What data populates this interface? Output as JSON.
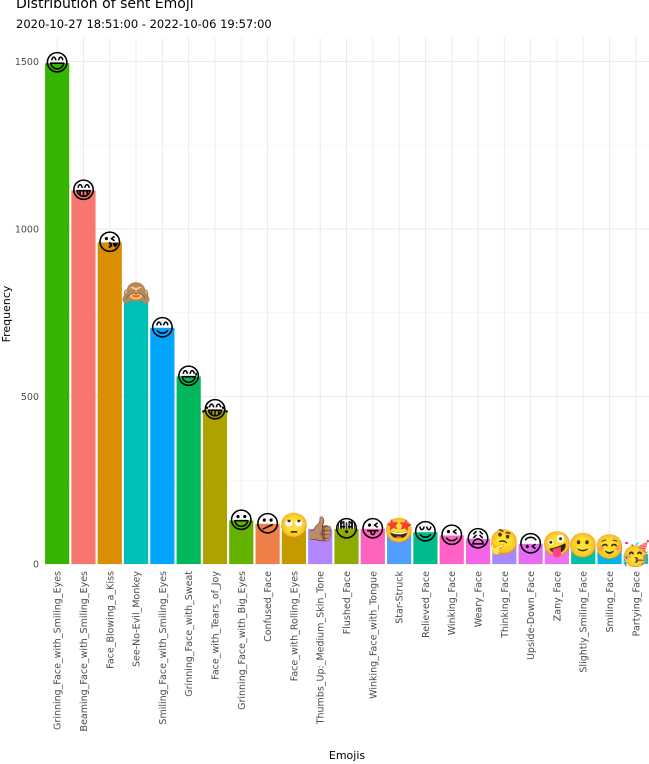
{
  "title": "Distribution of sent Emoji",
  "subtitle": "2020-10-27 18:51:00  -  2022-10-06 19:57:00",
  "chart_data": {
    "type": "bar",
    "xlabel": "Emojis",
    "ylabel": "Frequency",
    "ylim": [
      0,
      1570
    ],
    "yticks": [
      0,
      500,
      1000,
      1500
    ],
    "grid": true,
    "categories": [
      "Grinning_Face_with_Smiling_Eyes",
      "Beaming_Face_with_Smiling_Eyes",
      "Face_Blowing_a_Kiss",
      "See-No-Evil_Monkey",
      "Smiling_Face_with_Smiling_Eyes",
      "Grinning_Face_with_Sweat",
      "Face_with_Tears_of_Joy",
      "Grinning_Face_with_Big_Eyes",
      "Confused_Face",
      "Face_with_Rolling_Eyes",
      "Thumbs_Up:_Medium_Skin_Tone",
      "Flushed_Face",
      "Winking_Face_with_Tongue",
      "Star-Struck",
      "Relieved_Face",
      "Winking_Face",
      "Weary_Face",
      "Thinking_Face",
      "Upside-Down_Face",
      "Zany_Face",
      "Slightly_Smiling_Face",
      "Smiling_Face",
      "Partying_Face"
    ],
    "values": [
      1495,
      1115,
      960,
      810,
      705,
      560,
      460,
      130,
      120,
      115,
      105,
      105,
      105,
      100,
      95,
      85,
      75,
      65,
      60,
      60,
      55,
      50,
      30
    ],
    "colors": [
      "#36B400",
      "#F8766D",
      "#DB8E00",
      "#00BFB4",
      "#00A5FF",
      "#00B85B",
      "#AEA200",
      "#64B200",
      "#EF7F49",
      "#C49A00",
      "#B385FF",
      "#8FAA00",
      "#FF62BC",
      "#529EFF",
      "#00BC8C",
      "#FF61C9",
      "#F564E3",
      "#A58AFF",
      "#E76BF3",
      "#EA71F3",
      "#00C1A8",
      "#00B4EF",
      "#00BCD8"
    ],
    "emojis": [
      "😄",
      "😁",
      "😘",
      "🙈",
      "😊",
      "😅",
      "😂",
      "😃",
      "😕",
      "🙄",
      "👍🏽",
      "😳",
      "😜",
      "🤩",
      "😌",
      "😉",
      "😩",
      "🤔",
      "🙃",
      "🤪",
      "🙂",
      "☺️",
      "🥳"
    ]
  }
}
